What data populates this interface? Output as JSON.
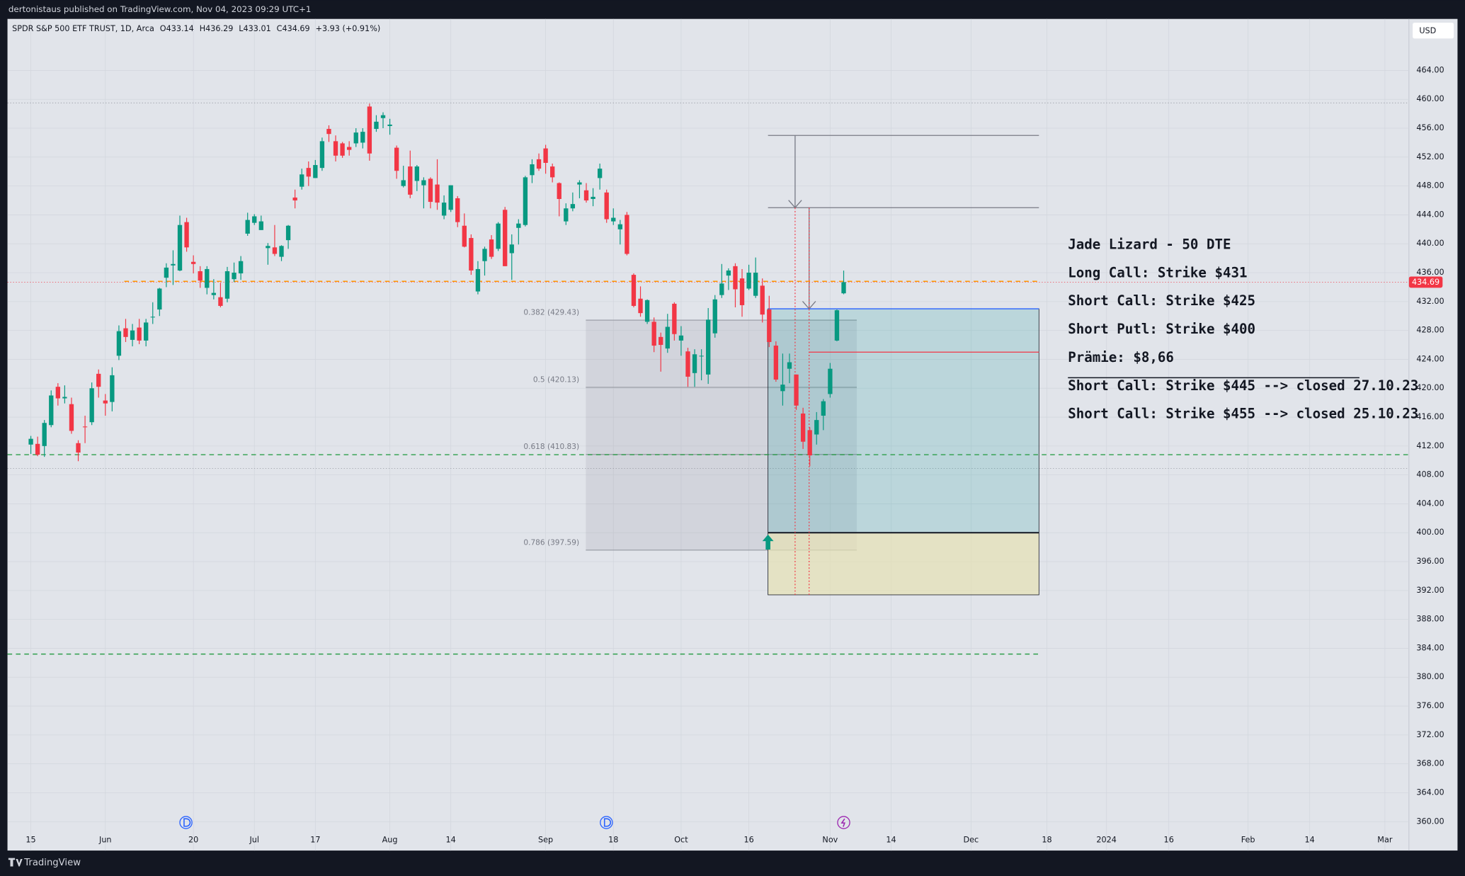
{
  "header": "dertonistaus published on TradingView.com, Nov 04, 2023 09:29 UTC+1",
  "footer": "TradingView",
  "chart_data": {
    "type": "candlestick",
    "symbol": "SPDR S&P 500 ETF TRUST, 1D, Arca",
    "ohlc_labels": [
      "O433.14",
      "H436.29",
      "L433.01",
      "C434.69"
    ],
    "change": "+3.93 (+0.91%)",
    "currency": "USD",
    "last_price": 434.69,
    "colors": {
      "up": "#089981",
      "down": "#f23645"
    },
    "open": [
      412.2,
      412.3,
      412.0,
      414.9,
      420.2,
      418.6,
      417.8,
      412.4,
      414.7,
      415.3,
      422.0,
      418.3,
      418.1,
      424.5,
      428.3,
      426.7,
      428.4,
      426.6,
      429.9,
      430.9,
      435.3,
      437.0,
      436.3,
      443.0,
      437.5,
      436.2,
      433.9,
      432.9,
      432.6,
      432.4,
      435.1,
      435.9,
      441.4,
      442.9,
      441.9,
      439.4,
      439.5,
      438.2,
      440.5,
      446.4,
      447.9,
      450.5,
      449.1,
      450.5,
      455.9,
      454.2,
      453.9,
      453.4,
      453.9,
      454.0,
      459.0,
      455.9,
      457.4,
      456.3,
      453.3,
      448.0,
      450.7,
      448.7,
      448.1,
      449.0,
      448.2,
      443.9,
      444.7,
      446.3,
      442.5,
      440.8,
      433.4,
      437.6,
      440.6,
      439.3,
      444.7,
      438.7,
      442.2,
      442.6,
      449.5,
      451.7,
      453.2,
      450.7,
      448.4,
      443.1,
      444.9,
      448.2,
      447.4,
      446.2,
      449.1,
      447.1,
      443.1,
      442.0,
      444.0,
      435.7,
      432.4,
      429.2,
      429.2,
      427.1,
      425.5,
      431.7,
      426.6,
      425.1,
      422.1,
      424.4,
      421.9,
      427.6,
      432.9,
      435.6,
      436.9,
      435.2,
      433.8,
      432.8,
      434.2,
      430.9,
      425.9,
      419.6,
      422.7,
      421.9,
      416.5,
      414.2,
      413.6,
      416.2,
      419.2,
      426.6,
      433.14
    ],
    "high": [
      413.4,
      413.3,
      415.6,
      419.7,
      420.7,
      420.4,
      418.7,
      412.8,
      416.2,
      420.8,
      422.6,
      419.2,
      422.9,
      428.7,
      429.6,
      428.9,
      429.6,
      429.6,
      431.9,
      433.9,
      437.3,
      439.1,
      443.9,
      443.6,
      438.4,
      436.9,
      436.9,
      435.1,
      434.6,
      436.8,
      437.4,
      438.3,
      444.3,
      444.1,
      443.9,
      440.1,
      442.6,
      439.8,
      442.6,
      447.5,
      450.4,
      451.4,
      451.6,
      454.7,
      456.4,
      455.0,
      454.1,
      454.2,
      456.0,
      456.0,
      459.4,
      457.8,
      458.2,
      457.3,
      453.6,
      450.8,
      452.9,
      450.9,
      449.2,
      449.2,
      451.7,
      446.7,
      448.1,
      446.6,
      444.2,
      441.3,
      437.6,
      439.6,
      441.2,
      443.0,
      445.1,
      441.3,
      443.4,
      449.4,
      451.7,
      452.5,
      453.7,
      451.1,
      448.5,
      445.6,
      447.1,
      448.8,
      448.4,
      447.7,
      451.1,
      447.5,
      444.9,
      443.3,
      444.4,
      435.9,
      434.1,
      432.3,
      429.8,
      427.7,
      430.3,
      431.9,
      428.6,
      425.6,
      425.4,
      425.4,
      431.1,
      432.9,
      437.2,
      436.6,
      437.3,
      436.5,
      437.1,
      438.1,
      435.2,
      432.8,
      426.5,
      424.8,
      424.8,
      421.9,
      417.3,
      414.6,
      416.7,
      418.5,
      423.5,
      430.9,
      436.29
    ],
    "low": [
      410.9,
      410.6,
      410.5,
      414.6,
      417.6,
      417.9,
      413.7,
      409.9,
      412.4,
      414.9,
      418.7,
      416.2,
      416.8,
      423.9,
      426.4,
      425.8,
      426.1,
      425.8,
      428.9,
      430.0,
      434.0,
      434.3,
      436.2,
      438.9,
      435.9,
      433.9,
      433.0,
      432.3,
      431.2,
      431.9,
      434.7,
      435.0,
      441.1,
      442.6,
      441.9,
      437.1,
      438.3,
      437.6,
      439.3,
      444.9,
      447.5,
      448.0,
      449.1,
      450.1,
      454.1,
      451.4,
      451.9,
      452.2,
      453.4,
      453.2,
      451.5,
      455.5,
      456.0,
      455.1,
      449.0,
      447.8,
      446.3,
      447.3,
      444.9,
      444.9,
      444.7,
      443.4,
      444.4,
      442.3,
      439.5,
      435.7,
      433.0,
      435.6,
      437.9,
      439.0,
      436.9,
      435.0,
      439.9,
      442.4,
      448.4,
      450.1,
      449.7,
      448.5,
      443.8,
      442.6,
      444.5,
      446.3,
      445.7,
      445.2,
      447.5,
      442.9,
      442.6,
      439.9,
      438.4,
      431.2,
      429.9,
      428.9,
      425.0,
      422.3,
      424.9,
      426.6,
      424.5,
      420.2,
      420.2,
      421.1,
      420.6,
      427.0,
      432.5,
      433.6,
      431.2,
      429.9,
      433.6,
      432.5,
      429.1,
      425.7,
      420.9,
      417.6,
      420.7,
      417.0,
      411.6,
      409.2,
      412.2,
      414.2,
      418.7,
      426.5,
      433.01
    ],
    "close": [
      413.0,
      410.8,
      415.2,
      419.0,
      418.6,
      418.8,
      414.1,
      411.1,
      414.6,
      420.0,
      420.2,
      417.9,
      421.8,
      427.9,
      427.1,
      428.0,
      426.6,
      429.1,
      429.9,
      433.8,
      436.7,
      437.2,
      442.6,
      439.5,
      437.2,
      434.9,
      436.5,
      433.2,
      431.4,
      436.2,
      436.0,
      437.6,
      443.3,
      443.8,
      443.1,
      439.7,
      438.6,
      439.7,
      442.5,
      446.0,
      449.6,
      449.3,
      450.9,
      454.2,
      455.2,
      452.2,
      452.2,
      453.0,
      455.4,
      455.5,
      452.5,
      456.9,
      457.8,
      456.5,
      450.1,
      448.8,
      446.8,
      450.7,
      448.8,
      445.8,
      445.7,
      445.7,
      448.1,
      443.0,
      439.6,
      436.3,
      436.5,
      439.3,
      438.2,
      442.8,
      436.9,
      439.9,
      442.8,
      449.2,
      451.0,
      450.4,
      451.2,
      449.2,
      446.2,
      444.9,
      445.5,
      448.5,
      446.0,
      446.5,
      450.4,
      443.4,
      443.6,
      442.7,
      438.6,
      431.4,
      430.4,
      432.2,
      425.9,
      426.0,
      428.5,
      427.5,
      427.3,
      421.6,
      424.7,
      424.5,
      429.5,
      432.3,
      434.5,
      436.3,
      433.7,
      431.5,
      436.0,
      436.0,
      430.2,
      426.4,
      421.2,
      420.5,
      423.6,
      417.6,
      412.6,
      410.7,
      415.6,
      418.2,
      422.7,
      430.8,
      434.69
    ],
    "xlim": [
      -3.45,
      203.45
    ],
    "xticks": [
      {
        "value": 0,
        "label": "15"
      },
      {
        "value": 11,
        "label": "Jun"
      },
      {
        "value": 24,
        "label": "20"
      },
      {
        "value": 33,
        "label": "Jul"
      },
      {
        "value": 42,
        "label": "17"
      },
      {
        "value": 53,
        "label": "Aug"
      },
      {
        "value": 62,
        "label": "14"
      },
      {
        "value": 76,
        "label": "Sep"
      },
      {
        "value": 86,
        "label": "18"
      },
      {
        "value": 96,
        "label": "Oct"
      },
      {
        "value": 106,
        "label": "16"
      },
      {
        "value": 118,
        "label": "Nov"
      },
      {
        "value": 127,
        "label": "14"
      },
      {
        "value": 138.8,
        "label": "Dec"
      },
      {
        "value": 150,
        "label": "18"
      },
      {
        "value": 158.8,
        "label": "2024"
      },
      {
        "value": 168,
        "label": "16"
      },
      {
        "value": 179.7,
        "label": "Feb"
      },
      {
        "value": 188.8,
        "label": "14"
      },
      {
        "value": 199.9,
        "label": "Mar"
      }
    ],
    "ylim": [
      356,
      471.13
    ],
    "yticks": [
      {
        "value": 360,
        "label": "360.00"
      },
      {
        "value": 364,
        "label": "364.00"
      },
      {
        "value": 368,
        "label": "368.00"
      },
      {
        "value": 372,
        "label": "372.00"
      },
      {
        "value": 376,
        "label": "376.00"
      },
      {
        "value": 380,
        "label": "380.00"
      },
      {
        "value": 384,
        "label": "384.00"
      },
      {
        "value": 388,
        "label": "388.00"
      },
      {
        "value": 392,
        "label": "392.00"
      },
      {
        "value": 396,
        "label": "396.00"
      },
      {
        "value": 400,
        "label": "400.00"
      },
      {
        "value": 404,
        "label": "404.00"
      },
      {
        "value": 408,
        "label": "408.00"
      },
      {
        "value": 412,
        "label": "412.00"
      },
      {
        "value": 416,
        "label": "416.00"
      },
      {
        "value": 420,
        "label": "420.00"
      },
      {
        "value": 424,
        "label": "424.00"
      },
      {
        "value": 428,
        "label": "428.00"
      },
      {
        "value": 432,
        "label": "432.00"
      },
      {
        "value": 436,
        "label": "436.00"
      },
      {
        "value": 440,
        "label": "440.00"
      },
      {
        "value": 444,
        "label": "444.00"
      },
      {
        "value": 448,
        "label": "448.00"
      },
      {
        "value": 452,
        "label": "452.00"
      },
      {
        "value": 456,
        "label": "456.00"
      },
      {
        "value": 460,
        "label": "460.00"
      },
      {
        "value": 464,
        "label": "464.00"
      }
    ],
    "grid": true,
    "levels": [
      {
        "value": 434.8,
        "color": "#ff9800"
      },
      {
        "value": 410.8,
        "color": "#2e9e4a"
      },
      {
        "value": 383.2,
        "color": "#2e9e4a"
      }
    ],
    "dotted_levels": [
      459.5,
      408.9
    ],
    "fib": [
      {
        "value": 429.43,
        "label": "0.382 (429.43)"
      },
      {
        "value": 420.13,
        "label": "0.5 (420.13)"
      },
      {
        "value": 410.83,
        "label": "0.618 (410.83)"
      },
      {
        "value": 397.59,
        "label": "0.786 (397.59)"
      }
    ],
    "target_lines": [
      455,
      445
    ],
    "box": {
      "top": 431,
      "short_call": 425,
      "put": 400,
      "bottom": 391.4
    },
    "notes": [
      "Jade Lizard - 50 DTE",
      "Long Call: Strike $431",
      "Short Call: Strike $425",
      "Short Putl: Strike $400",
      "Prämie: $8,66",
      "Short Call: Strike $445 --> closed 27.10.23",
      "Short Call: Strike $455 --> closed 25.10.23"
    ]
  }
}
